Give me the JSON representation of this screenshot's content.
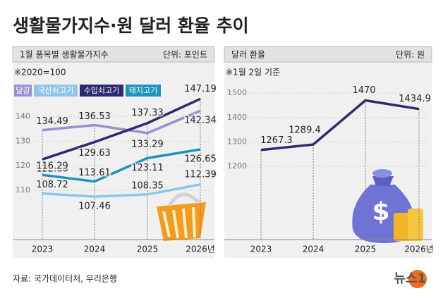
{
  "title": "생활물가지수·원 달러 환율 추이",
  "source": "자료: 국가데이터처, 우리은행",
  "brand": "뉴스1",
  "chart_data": [
    {
      "type": "line",
      "header": "1월 품목별 생활물가지수",
      "unit": "단위: 포인트",
      "note": "※2020=100",
      "categories": [
        "2023",
        "2024",
        "2025",
        "2026년"
      ],
      "series": [
        {
          "name": "달걀",
          "color": "#9a8fd2",
          "values": [
            134.49,
            136.53,
            133.29,
            142.34
          ],
          "value_labels": [
            "134.49",
            "136.53",
            "133.29",
            "142.34"
          ]
        },
        {
          "name": "국산쇠고기",
          "color": "#8ec5e8",
          "values": [
            108.72,
            107.46,
            108.35,
            112.39
          ],
          "value_labels": [
            "108.72",
            "107.46",
            "108.35",
            "112.39"
          ]
        },
        {
          "name": "수입쇠고기",
          "color": "#2e2a6e",
          "values": [
            122.6,
            129.63,
            137.33,
            147.19
          ],
          "value_labels": [
            "122.60",
            "129.63",
            "137.33",
            "147.19"
          ]
        },
        {
          "name": "돼지고기",
          "color": "#1f93bd",
          "values": [
            116.29,
            113.61,
            123.11,
            126.65
          ],
          "value_labels": [
            "116.29",
            "113.61",
            "123.11",
            "126.65"
          ]
        }
      ],
      "ylim": [
        90,
        153
      ],
      "yticks": [
        110,
        120,
        130,
        140
      ],
      "grid": true
    },
    {
      "type": "line",
      "header": "달러 환율",
      "unit": "단위: 원",
      "note": "※1월 2일 기준",
      "categories": [
        "2023",
        "2024",
        "2025",
        "2026년"
      ],
      "series": [
        {
          "color": "#2e2a6e",
          "values": [
            1267.3,
            1289.4,
            1470,
            1434.9
          ]
        }
      ],
      "ylim": [
        900,
        1535
      ],
      "yticks": [
        1200,
        1300,
        1400,
        1500
      ],
      "grid": true
    }
  ]
}
